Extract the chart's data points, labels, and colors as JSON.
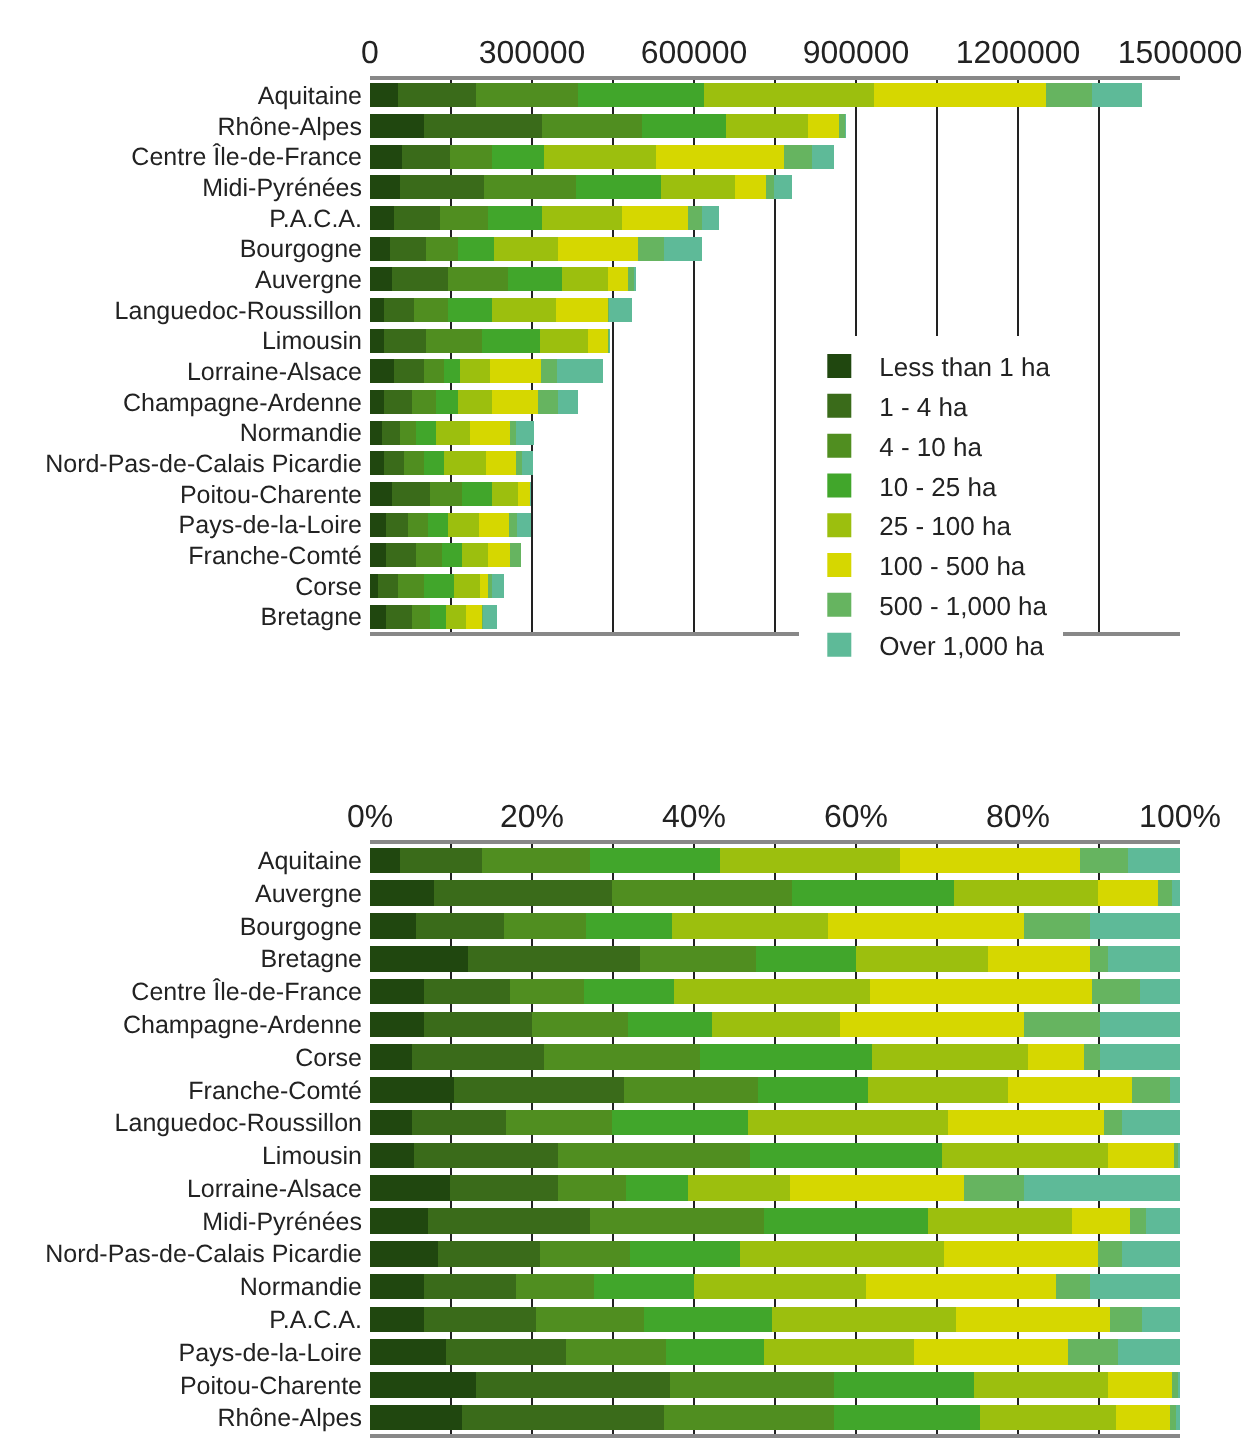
{
  "chart_data": [
    {
      "type": "bar",
      "orientation": "horizontal",
      "stacked": true,
      "categories": [
        "Aquitaine",
        "Rhône-Alpes",
        "Centre Île-de-France",
        "Midi-Pyrénées",
        "P.A.C.A.",
        "Bourgogne",
        "Auvergne",
        "Languedoc-Roussillon",
        "Limousin",
        "Lorraine-Alsace",
        "Champagne-Ardenne",
        "Normandie",
        "Nord-Pas-de-Calais Picardie",
        "Poitou-Charente",
        "Pays-de-la-Loire",
        "Franche-Comté",
        "Corse",
        "Bretagne"
      ],
      "series": [
        {
          "name": "Less than 1 ha",
          "color": "#20470f",
          "values": [
            52000,
            100000,
            59000,
            56000,
            44000,
            37000,
            41000,
            26000,
            26000,
            44000,
            26000,
            22000,
            26000,
            41000,
            30000,
            30000,
            15000,
            30000
          ]
        },
        {
          "name": "1 - 4 ha",
          "color": "#3a6b1a",
          "values": [
            144000,
            219000,
            89000,
            156000,
            85000,
            67000,
            104000,
            56000,
            78000,
            56000,
            52000,
            33000,
            37000,
            70000,
            41000,
            56000,
            37000,
            48000
          ]
        },
        {
          "name": "4 - 10 ha",
          "color": "#508e20",
          "values": [
            189000,
            185000,
            78000,
            170000,
            89000,
            59000,
            111000,
            63000,
            104000,
            37000,
            44000,
            30000,
            37000,
            59000,
            37000,
            48000,
            48000,
            33000
          ]
        },
        {
          "name": "10 - 25 ha",
          "color": "#41a62b",
          "values": [
            233000,
            156000,
            96000,
            156000,
            100000,
            67000,
            100000,
            81000,
            107000,
            30000,
            41000,
            37000,
            37000,
            56000,
            37000,
            37000,
            56000,
            30000
          ]
        },
        {
          "name": "25 - 100 ha",
          "color": "#9cbf0e",
          "values": [
            315000,
            152000,
            207000,
            137000,
            148000,
            119000,
            85000,
            119000,
            89000,
            56000,
            63000,
            63000,
            78000,
            48000,
            56000,
            48000,
            48000,
            37000
          ]
        },
        {
          "name": "100 - 500 ha",
          "color": "#d6d700",
          "values": [
            319000,
            56000,
            237000,
            59000,
            122000,
            148000,
            37000,
            96000,
            37000,
            93000,
            85000,
            74000,
            56000,
            22000,
            56000,
            41000,
            15000,
            30000
          ]
        },
        {
          "name": "500 - 1,000 ha",
          "color": "#66b460",
          "values": [
            85000,
            11000,
            52000,
            15000,
            26000,
            48000,
            11000,
            2000,
            2000,
            30000,
            37000,
            11000,
            11000,
            1000,
            15000,
            19000,
            7000,
            1000
          ]
        },
        {
          "name": "Over 1,000 ha",
          "color": "#5eba98",
          "values": [
            93000,
            2000,
            41000,
            33000,
            33000,
            70000,
            4000,
            42000,
            1000,
            85000,
            37000,
            33000,
            19000,
            1000,
            26000,
            1000,
            22000,
            26000
          ]
        }
      ],
      "xlim": [
        0,
        1500000
      ],
      "xticks": [
        0,
        {
          "value": 150000,
          "label": null
        },
        300000,
        {
          "value": 450000,
          "label": null
        },
        600000,
        {
          "value": 750000,
          "label": null
        },
        900000,
        {
          "value": 1050000,
          "label": null
        },
        1200000,
        {
          "value": 1350000,
          "label": null
        },
        1500000
      ],
      "grid": "x",
      "legend": "bottom right"
    },
    {
      "type": "bar",
      "orientation": "horizontal",
      "stacked": true,
      "categories": [
        "Aquitaine",
        "Auvergne",
        "Bourgogne",
        "Bretagne",
        "Centre Île-de-France",
        "Champagne-Ardenne",
        "Corse",
        "Franche-Comté",
        "Languedoc-Roussillon",
        "Limousin",
        "Lorraine-Alsace",
        "Midi-Pyrénées",
        "Nord-Pas-de-Calais Picardie",
        "Normandie",
        "P.A.C.A.",
        "Pays-de-la-Loire",
        "Poitou-Charente",
        "Rhône-Alpes"
      ],
      "series": [
        {
          "color": "#20470f",
          "values": [
            3.7,
            7.9,
            5.7,
            12.1,
            6.7,
            6.7,
            5.2,
            10.4,
            5.2,
            5.4,
            9.9,
            7.2,
            8.4,
            6.7,
            6.7,
            9.4,
            13.1,
            11.4
          ]
        },
        {
          "color": "#3a6b1a",
          "values": [
            10.1,
            22.0,
            10.8,
            21.2,
            10.6,
            13.3,
            16.3,
            21.0,
            11.6,
            17.8,
            13.3,
            20.0,
            12.6,
            11.3,
            13.8,
            14.8,
            23.9,
            24.9
          ]
        },
        {
          "color": "#508e20",
          "values": [
            13.4,
            22.2,
            10.2,
            14.4,
            9.1,
            11.9,
            19.2,
            16.5,
            13.1,
            23.7,
            8.4,
            21.4,
            11.1,
            9.7,
            13.3,
            12.3,
            20.3,
            21.0
          ]
        },
        {
          "color": "#41a62b",
          "values": [
            16.0,
            20.0,
            10.6,
            12.3,
            11.1,
            10.3,
            21.3,
            13.6,
            16.8,
            23.7,
            7.7,
            20.3,
            13.6,
            12.3,
            15.8,
            12.1,
            17.3,
            18.0
          ]
        },
        {
          "color": "#9cbf0e",
          "values": [
            22.2,
            17.8,
            19.2,
            16.3,
            24.2,
            15.8,
            19.2,
            17.3,
            24.7,
            20.5,
            12.6,
            17.8,
            25.2,
            21.2,
            22.7,
            18.6,
            16.5,
            16.8
          ]
        },
        {
          "color": "#d6d700",
          "values": [
            22.3,
            7.4,
            24.2,
            12.6,
            27.4,
            22.7,
            6.9,
            15.3,
            19.2,
            8.2,
            21.4,
            7.1,
            19.0,
            23.5,
            19.1,
            19.0,
            7.9,
            6.7
          ]
        },
        {
          "color": "#66b460",
          "values": [
            5.9,
            1.7,
            8.2,
            2.2,
            6.0,
            9.4,
            2.0,
            4.7,
            2.2,
            0.4,
            7.4,
            2.0,
            2.9,
            4.2,
            3.9,
            6.1,
            0.8,
            0.7
          ]
        },
        {
          "color": "#5eba98",
          "values": [
            6.4,
            1.0,
            11.1,
            8.9,
            4.9,
            9.9,
            9.9,
            1.2,
            7.2,
            0.3,
            19.3,
            4.2,
            7.2,
            11.1,
            4.7,
            7.7,
            0.2,
            0.5
          ]
        }
      ],
      "xlim": [
        0,
        100
      ],
      "xticks": [
        {
          "value": 0,
          "label": "0%"
        },
        {
          "value": 10,
          "label": null
        },
        {
          "value": 20,
          "label": "20%"
        },
        {
          "value": 30,
          "label": null
        },
        {
          "value": 40,
          "label": "40%"
        },
        {
          "value": 50,
          "label": null
        },
        {
          "value": 60,
          "label": "60%"
        },
        {
          "value": 70,
          "label": null
        },
        {
          "value": 80,
          "label": "80%"
        },
        {
          "value": 90,
          "label": null
        },
        {
          "value": 100,
          "label": "100%"
        }
      ],
      "grid": "x",
      "legend": false
    }
  ]
}
